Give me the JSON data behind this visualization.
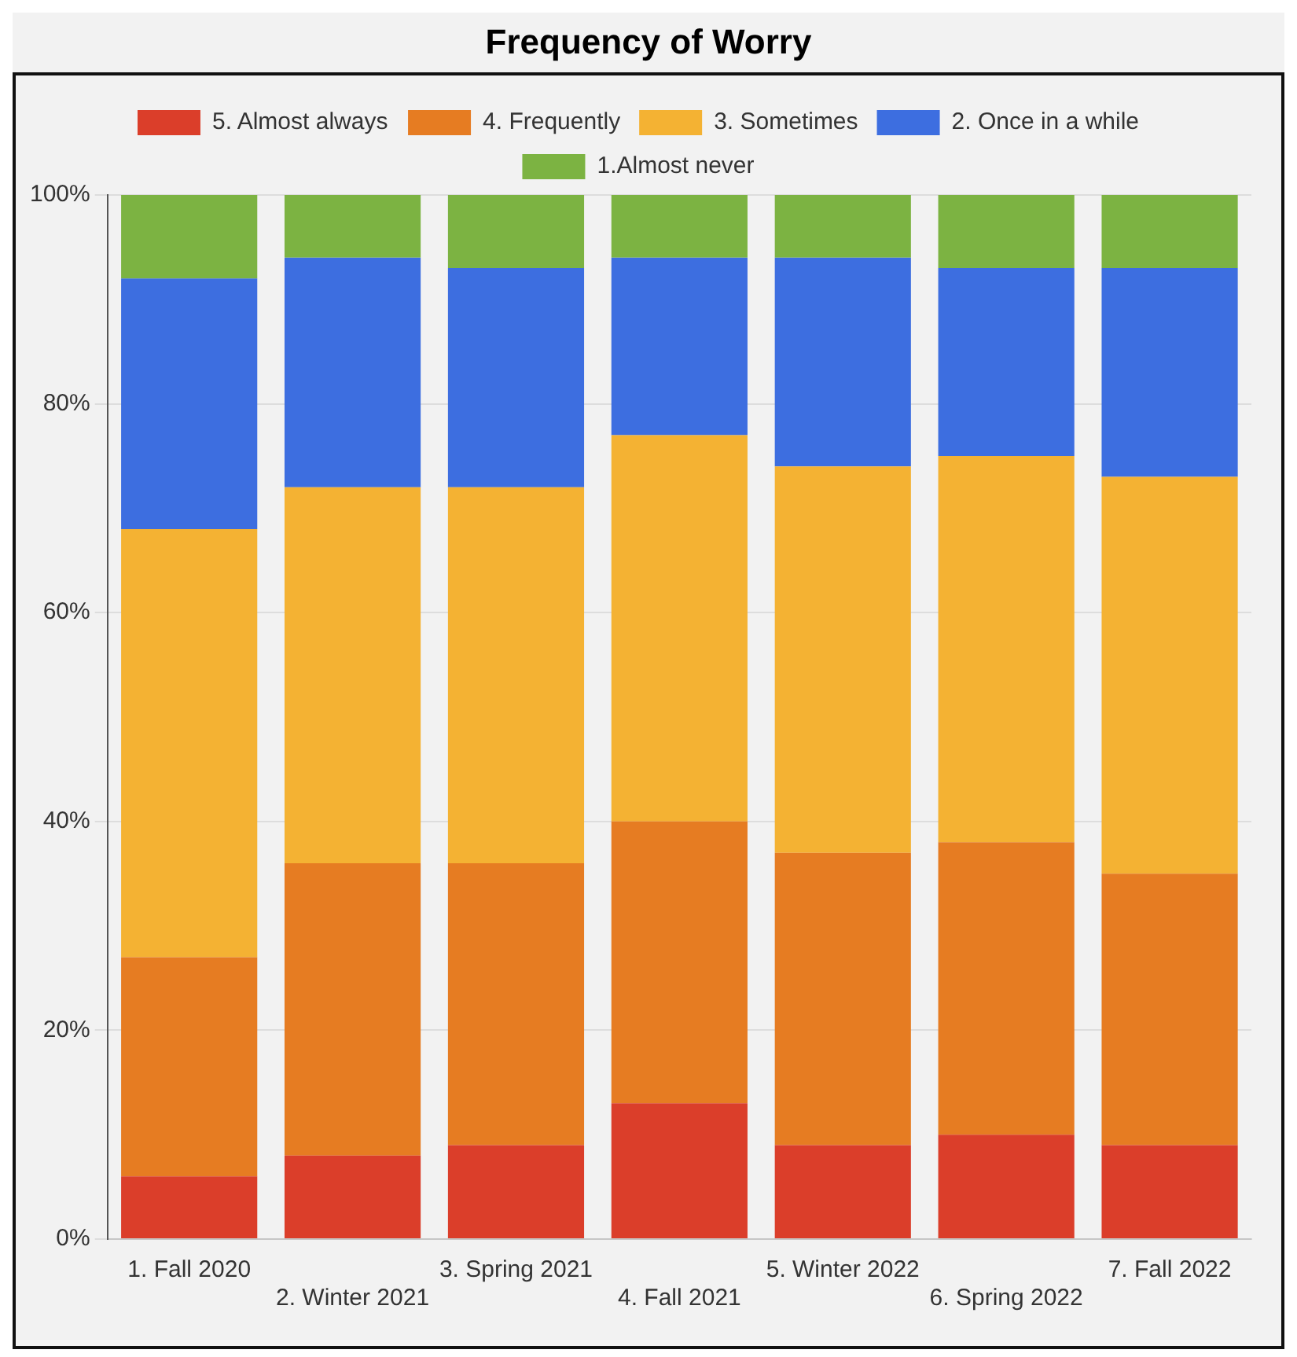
{
  "chart_data": {
    "type": "bar",
    "title": "Frequency of Worry",
    "stacked": true,
    "categories": [
      "1. Fall 2020",
      "2. Winter 2021",
      "3. Spring 2021",
      "4. Fall 2021",
      "5. Winter 2022",
      "6. Spring 2022",
      "7. Fall 2022"
    ],
    "series": [
      {
        "name": "5. Almost always",
        "color": "#db3e2a",
        "values": [
          6,
          8,
          9,
          13,
          9,
          10,
          9
        ]
      },
      {
        "name": "4. Frequently",
        "color": "#e67c22",
        "values": [
          21,
          28,
          27,
          27,
          28,
          28,
          26
        ]
      },
      {
        "name": "3. Sometimes",
        "color": "#f4b233",
        "values": [
          41,
          36,
          36,
          37,
          37,
          37,
          38
        ]
      },
      {
        "name": "2. Once in a while",
        "color": "#3d6ee0",
        "values": [
          24,
          22,
          21,
          17,
          20,
          18,
          20
        ]
      },
      {
        "name": "1.Almost never",
        "color": "#7cb342",
        "values": [
          8,
          6,
          7,
          6,
          6,
          7,
          7
        ]
      }
    ],
    "ylim": [
      0,
      100
    ],
    "yticks": [
      {
        "value": 0,
        "label": "0%"
      },
      {
        "value": 20,
        "label": "20%"
      },
      {
        "value": 40,
        "label": "40%"
      },
      {
        "value": 60,
        "label": "60%"
      },
      {
        "value": 80,
        "label": "80%"
      },
      {
        "value": 100,
        "label": "100%"
      }
    ],
    "grid": "y",
    "legend": "top"
  }
}
